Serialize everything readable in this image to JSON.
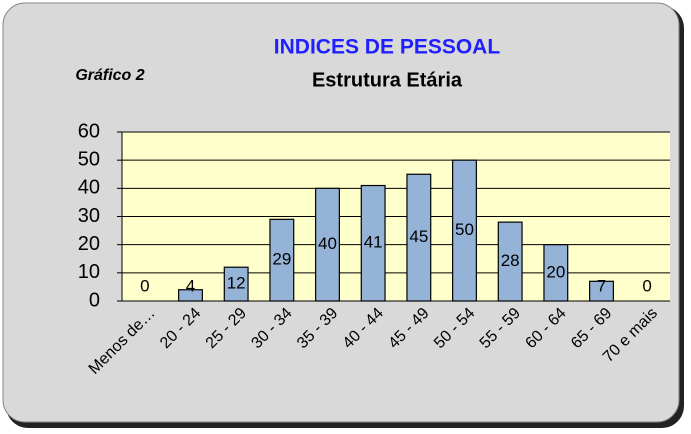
{
  "chart_data": {
    "type": "bar",
    "title": "INDICES DE PESSOAL",
    "subtitle": "Estrutura Etária",
    "annotation": "Gráfico 2",
    "categories": [
      "Menos de…",
      "20 - 24",
      "25 - 29",
      "30 - 34",
      "35 - 39",
      "40 - 44",
      "45 - 49",
      "50 - 54",
      "55 - 59",
      "60 - 64",
      "65 - 69",
      "70 e mais"
    ],
    "values": [
      0,
      4,
      12,
      29,
      40,
      41,
      45,
      50,
      28,
      20,
      7,
      0
    ],
    "color": "#95b3d7",
    "ylim": [
      0,
      60
    ],
    "yticks": [
      0,
      10,
      20,
      30,
      40,
      50,
      60
    ],
    "grid": true
  }
}
